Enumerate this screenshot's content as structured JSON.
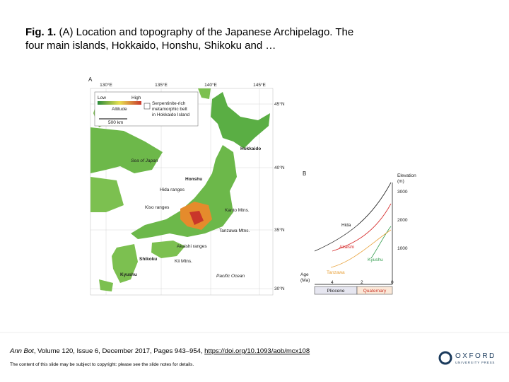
{
  "slide": {
    "title": {
      "label": "Fig. 1.",
      "text": "(A) Location and topography of the Japanese Archipelago. The four main islands, Hokkaido, Honshu, Shikoku and …"
    },
    "figure": {
      "panel_a": {
        "label": "A",
        "longitudes": [
          "130°E",
          "135°E",
          "140°E",
          "145°E"
        ],
        "latitudes": [
          "45°N",
          "40°N",
          "35°N",
          "30°N"
        ],
        "legend": {
          "low": "Low",
          "high": "High",
          "altitude": "Altitude",
          "belt": [
            "Serpentinite-rich",
            "metamorphic belt",
            "in Hokkaido Island"
          ],
          "scale": "500 km"
        },
        "places": [
          "Hokkaido",
          "Sea of Japan",
          "Honshu",
          "Hida ranges",
          "Kiso ranges",
          "Kanto Mtns.",
          "Tanzawa Mtns.",
          "Akaishi ranges",
          "Shikoku",
          "Kii Mtns.",
          "Kyushu",
          "Pacific Ocean"
        ]
      },
      "panel_b": {
        "label": "B",
        "y_title": [
          "Elevation",
          "(m)"
        ],
        "y_ticks": [
          "3000",
          "2000",
          "1000"
        ],
        "series": [
          "Hida",
          "Akaishi",
          "Kyushu",
          "Tanzawa"
        ],
        "x_title": [
          "Age",
          "(Ma)"
        ],
        "x_ticks": [
          "4",
          "2",
          "0"
        ],
        "periods": [
          "Pliocene",
          "Quaternary"
        ]
      }
    },
    "citation": {
      "journal": "Ann Bot",
      "details": ", Volume 120, Issue 6, December 2017, Pages 943–954, ",
      "doi": "https://doi.org/10.1093/aob/mcx108"
    },
    "copyright": "The content of this slide may be subject to copyright: please see the slide notes for details.",
    "logo": {
      "name": "OXFORD",
      "sub": "UNIVERSITY PRESS"
    }
  }
}
